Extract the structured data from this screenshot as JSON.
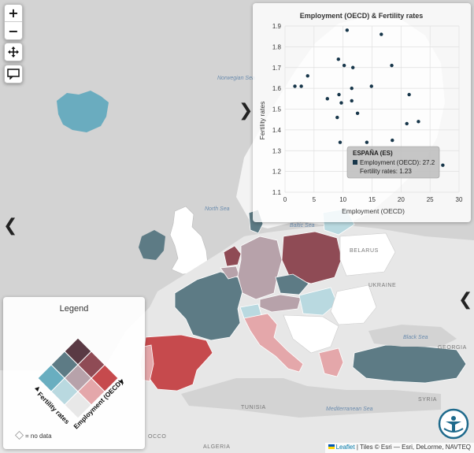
{
  "controls": {
    "zoom_in": "+",
    "zoom_out": "−"
  },
  "chart_data": {
    "type": "scatter",
    "title": "Employment (OECD) & Fertility rates",
    "xlabel": "Employment (OECD)",
    "ylabel": "Fertility rates",
    "xlim": [
      0,
      30
    ],
    "ylim": [
      1.1,
      1.9
    ],
    "xticks": [
      "0",
      "5",
      "10",
      "15",
      "20",
      "25",
      "30"
    ],
    "yticks": [
      "1.1",
      "1.2",
      "1.3",
      "1.4",
      "1.5",
      "1.6",
      "1.7",
      "1.8",
      "1.9"
    ],
    "point_color": "#17364a",
    "points": [
      {
        "x": 10.7,
        "y": 1.88
      },
      {
        "x": 16.6,
        "y": 1.86
      },
      {
        "x": 9.2,
        "y": 1.74
      },
      {
        "x": 10.2,
        "y": 1.71
      },
      {
        "x": 11.7,
        "y": 1.7
      },
      {
        "x": 18.4,
        "y": 1.71
      },
      {
        "x": 3.9,
        "y": 1.66
      },
      {
        "x": 1.7,
        "y": 1.61
      },
      {
        "x": 2.8,
        "y": 1.61
      },
      {
        "x": 11.5,
        "y": 1.6
      },
      {
        "x": 14.9,
        "y": 1.61
      },
      {
        "x": 9.3,
        "y": 1.57
      },
      {
        "x": 7.3,
        "y": 1.55
      },
      {
        "x": 9.7,
        "y": 1.53
      },
      {
        "x": 11.5,
        "y": 1.54
      },
      {
        "x": 21.4,
        "y": 1.57
      },
      {
        "x": 12.5,
        "y": 1.48
      },
      {
        "x": 9.0,
        "y": 1.46
      },
      {
        "x": 23.0,
        "y": 1.44
      },
      {
        "x": 21.0,
        "y": 1.43
      },
      {
        "x": 18.5,
        "y": 1.35
      },
      {
        "x": 9.5,
        "y": 1.34
      },
      {
        "x": 14.1,
        "y": 1.34
      },
      {
        "x": 27.2,
        "y": 1.23
      }
    ],
    "tooltip": {
      "country": "ESPAÑA (ES)",
      "line1": "Employment (OECD): 27.2",
      "line2": "Fertility rates: 1.23"
    }
  },
  "legend": {
    "title": "Legend",
    "axis_y": "Fertility rates",
    "axis_x": "Employment (OECD)",
    "no_data": "= no data",
    "colors": [
      "#5a3a44",
      "#8f4b55",
      "#c64a4d",
      "#5d7b85",
      "#b7a2aa",
      "#e4a7aa",
      "#69aec0",
      "#b9d9e0",
      "#e8e8e8"
    ]
  },
  "map_labels": {
    "belarus": "BELARUS",
    "ukraine": "UKRAINE",
    "georgia": "GEORGIA",
    "syria": "SYRIA",
    "tunisia": "TUNISIA",
    "algeria": "ALGERIA",
    "morocco": "OCCO",
    "norwegian_sea": "Norwegian Sea",
    "north_sea": "North Sea",
    "baltic_sea": "Baltic Sea",
    "black_sea": "Black Sea",
    "mediterranean": "Mediterranean Sea"
  },
  "attribution": {
    "leaflet": "Leaflet",
    "text": " | Tiles © Esri — Esri, DeLorme, NAVTEQ"
  }
}
